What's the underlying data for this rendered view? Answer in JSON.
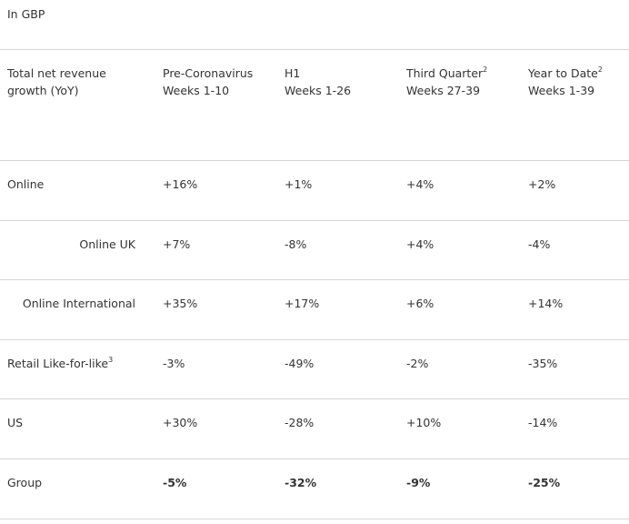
{
  "unit_label": "In GBP",
  "header": {
    "metric": {
      "line1": "Total net revenue",
      "line2": "growth (YoY)"
    },
    "columns": [
      {
        "line1": "Pre-Coronavirus",
        "sup": "",
        "line2": "Weeks 1-10"
      },
      {
        "line1": "H1",
        "sup": "",
        "line2": "Weeks 1-26"
      },
      {
        "line1": "Third Quarter",
        "sup": "2",
        "line2": "Weeks 27-39"
      },
      {
        "line1": "Year to Date",
        "sup": "2",
        "line2": "Weeks 1-39"
      }
    ]
  },
  "rows": [
    {
      "label": "Online",
      "sup": "",
      "values": [
        "+16%",
        "+1%",
        "+4%",
        "+2%"
      ]
    },
    {
      "label": "Online UK",
      "sup": "",
      "values": [
        "+7%",
        "-8%",
        "+4%",
        "-4%"
      ]
    },
    {
      "label": "Online International",
      "sup": "",
      "values": [
        "+35%",
        "+17%",
        "+6%",
        "+14%"
      ]
    },
    {
      "label": "Retail Like-for-like",
      "sup": "3",
      "values": [
        "-3%",
        "-49%",
        "-2%",
        "-35%"
      ]
    },
    {
      "label": "US",
      "sup": "",
      "values": [
        "+30%",
        "-28%",
        "+10%",
        "-14%"
      ]
    },
    {
      "label": "Group",
      "sup": "",
      "values": [
        "-5%",
        "-32%",
        "-9%",
        "-25%"
      ]
    }
  ]
}
